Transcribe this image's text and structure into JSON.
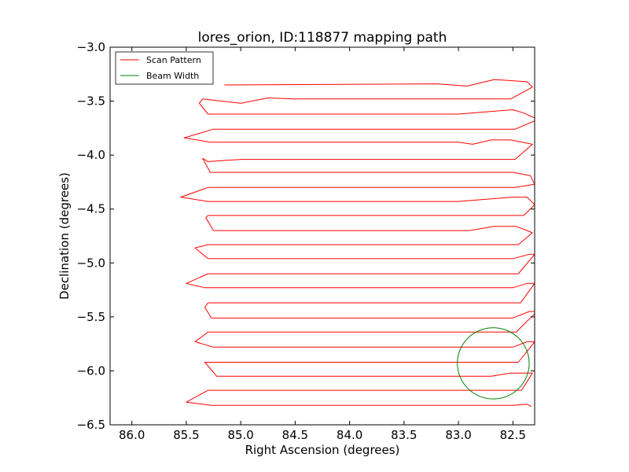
{
  "chart_data": {
    "type": "line",
    "title": "lores_orion, ID:118877 mapping path",
    "xlabel": "Right Ascension (degrees)",
    "ylabel": "Declination (degrees)",
    "xlim": [
      86.2,
      82.3
    ],
    "ylim": [
      -6.5,
      -3.0
    ],
    "x_inverted": true,
    "xticks": [
      86.0,
      85.5,
      85.0,
      84.5,
      84.0,
      83.5,
      83.0,
      82.5
    ],
    "xtick_labels": [
      "86.0",
      "85.5",
      "85.0",
      "84.5",
      "84.0",
      "83.5",
      "83.0",
      "82.5"
    ],
    "yticks": [
      -3.0,
      -3.5,
      -4.0,
      -4.5,
      -5.0,
      -5.5,
      -6.0,
      -6.5
    ],
    "ytick_labels": [
      "−3.0",
      "−3.5",
      "−4.0",
      "−4.5",
      "−5.0",
      "−5.5",
      "−6.0",
      "−6.5"
    ],
    "grid": false,
    "legend_position": "top-left",
    "series": [
      {
        "name": "Scan Pattern",
        "color": "#ff0000",
        "kind": "path",
        "x": [
          85.15,
          83.2,
          82.92,
          82.67,
          82.37,
          82.32,
          82.52,
          83.0,
          83.5,
          84.0,
          84.5,
          84.75,
          85.0,
          85.35,
          85.38,
          85.3,
          84.5,
          84.0,
          83.5,
          83.0,
          82.5,
          82.4,
          82.27,
          82.48,
          83.0,
          83.5,
          84.0,
          84.5,
          85.0,
          85.25,
          85.52,
          85.28,
          84.5,
          84.0,
          83.5,
          83.0,
          82.87,
          82.7,
          82.52,
          82.32,
          82.48,
          83.0,
          83.5,
          84.0,
          84.5,
          85.0,
          85.3,
          85.35,
          85.28,
          84.5,
          84.0,
          83.5,
          83.0,
          82.5,
          82.34,
          82.3,
          82.48,
          83.0,
          83.5,
          84.0,
          84.5,
          85.0,
          85.3,
          85.55,
          85.3,
          84.5,
          84.0,
          83.5,
          83.0,
          82.5,
          82.37,
          82.3,
          82.4,
          83.0,
          83.5,
          84.0,
          84.5,
          85.0,
          85.3,
          85.32,
          85.25,
          84.5,
          84.0,
          83.5,
          83.0,
          82.9,
          82.67,
          82.47,
          82.32,
          82.45,
          83.0,
          83.5,
          84.0,
          84.5,
          85.0,
          85.3,
          85.42,
          85.3,
          84.5,
          84.0,
          83.5,
          83.0,
          82.5,
          82.35,
          82.3,
          82.45,
          83.0,
          83.5,
          84.0,
          84.5,
          85.0,
          85.3,
          85.5,
          85.33,
          84.5,
          84.0,
          83.5,
          83.0,
          82.5,
          82.37,
          82.3,
          82.43,
          83.0,
          83.5,
          84.0,
          84.5,
          85.0,
          85.3,
          85.33,
          85.27,
          84.5,
          84.0,
          83.5,
          83.0,
          82.5,
          82.35,
          82.28,
          82.47,
          83.0,
          83.5,
          84.0,
          84.5,
          85.0,
          85.3,
          85.42,
          85.25,
          84.5,
          84.0,
          83.5,
          83.0,
          82.5,
          82.37,
          82.3,
          82.45,
          83.0,
          83.5,
          84.0,
          84.5,
          85.0,
          85.27,
          85.33,
          85.22,
          84.5,
          84.0,
          83.5,
          83.0,
          82.7,
          82.52,
          82.32,
          82.42,
          83.0,
          83.5,
          84.0,
          84.5,
          85.0,
          85.3,
          85.5,
          85.27,
          84.5,
          84.0,
          83.5,
          83.0,
          82.5,
          82.37,
          82.33
        ],
        "y": [
          -3.35,
          -3.34,
          -3.36,
          -3.3,
          -3.32,
          -3.37,
          -3.48,
          -3.48,
          -3.48,
          -3.48,
          -3.48,
          -3.47,
          -3.52,
          -3.48,
          -3.52,
          -3.62,
          -3.62,
          -3.62,
          -3.62,
          -3.62,
          -3.58,
          -3.61,
          -3.67,
          -3.76,
          -3.76,
          -3.76,
          -3.76,
          -3.76,
          -3.76,
          -3.76,
          -3.84,
          -3.88,
          -3.88,
          -3.88,
          -3.88,
          -3.88,
          -3.9,
          -3.86,
          -3.86,
          -3.9,
          -4.04,
          -4.04,
          -4.04,
          -4.04,
          -4.04,
          -4.04,
          -4.06,
          -4.03,
          -4.16,
          -4.16,
          -4.16,
          -4.16,
          -4.16,
          -4.16,
          -4.19,
          -4.27,
          -4.3,
          -4.3,
          -4.3,
          -4.3,
          -4.3,
          -4.3,
          -4.3,
          -4.39,
          -4.43,
          -4.43,
          -4.43,
          -4.43,
          -4.43,
          -4.39,
          -4.39,
          -4.46,
          -4.56,
          -4.56,
          -4.56,
          -4.56,
          -4.56,
          -4.56,
          -4.56,
          -4.58,
          -4.7,
          -4.7,
          -4.7,
          -4.7,
          -4.7,
          -4.7,
          -4.66,
          -4.66,
          -4.72,
          -4.83,
          -4.83,
          -4.83,
          -4.83,
          -4.83,
          -4.83,
          -4.83,
          -4.86,
          -4.96,
          -4.96,
          -4.96,
          -4.96,
          -4.96,
          -4.96,
          -4.92,
          -4.92,
          -5.1,
          -5.1,
          -5.1,
          -5.1,
          -5.1,
          -5.1,
          -5.1,
          -5.19,
          -5.23,
          -5.23,
          -5.23,
          -5.23,
          -5.23,
          -5.23,
          -5.19,
          -5.19,
          -5.37,
          -5.37,
          -5.37,
          -5.37,
          -5.37,
          -5.37,
          -5.37,
          -5.41,
          -5.51,
          -5.51,
          -5.51,
          -5.51,
          -5.51,
          -5.51,
          -5.45,
          -5.45,
          -5.64,
          -5.64,
          -5.64,
          -5.64,
          -5.64,
          -5.64,
          -5.64,
          -5.73,
          -5.78,
          -5.78,
          -5.78,
          -5.78,
          -5.78,
          -5.78,
          -5.73,
          -5.73,
          -5.92,
          -5.92,
          -5.92,
          -5.92,
          -5.92,
          -5.92,
          -5.92,
          -5.92,
          -6.05,
          -6.05,
          -6.05,
          -6.05,
          -6.05,
          -6.05,
          -6.02,
          -6.02,
          -6.18,
          -6.18,
          -6.18,
          -6.18,
          -6.18,
          -6.18,
          -6.18,
          -6.29,
          -6.32,
          -6.32,
          -6.32,
          -6.32,
          -6.32,
          -6.32,
          -6.31,
          -6.33
        ]
      },
      {
        "name": "Beam Width",
        "color": "#008000",
        "kind": "circle",
        "center": [
          82.68,
          -5.93
        ],
        "radius_deg": 0.33
      }
    ]
  }
}
